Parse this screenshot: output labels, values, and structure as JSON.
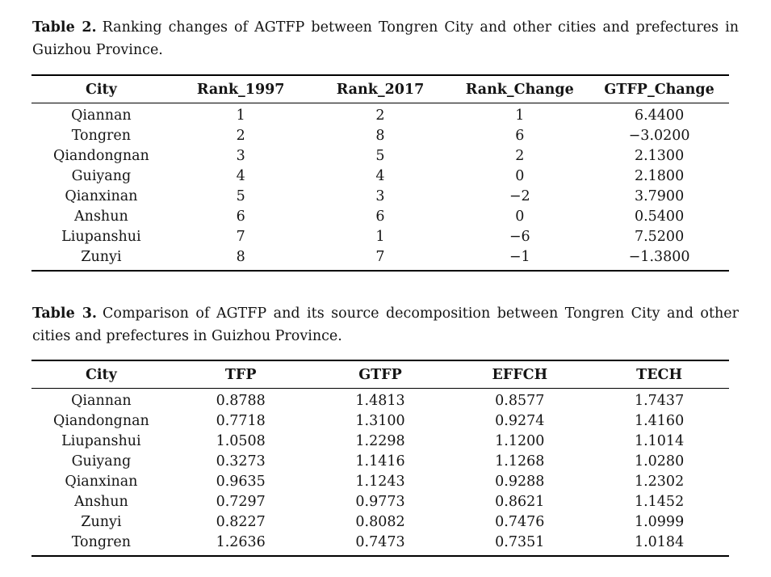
{
  "page": {
    "background_color": "#ffffff",
    "text_color": "#141414",
    "rule_color": "#000000"
  },
  "tables": [
    {
      "caption_label": "Table 2.",
      "caption_text": "Ranking changes of AGTFP between Tongren City and other cities and prefectures in Guizhou Province.",
      "columns": [
        "City",
        "Rank_1997",
        "Rank_2017",
        "Rank_Change",
        "GTFP_Change"
      ],
      "rows": [
        [
          "Qiannan",
          "1",
          "2",
          "1",
          "6.4400"
        ],
        [
          "Tongren",
          "2",
          "8",
          "6",
          "−3.0200"
        ],
        [
          "Qiandongnan",
          "3",
          "5",
          "2",
          "2.1300"
        ],
        [
          "Guiyang",
          "4",
          "4",
          "0",
          "2.1800"
        ],
        [
          "Qianxinan",
          "5",
          "3",
          "−2",
          "3.7900"
        ],
        [
          "Anshun",
          "6",
          "6",
          "0",
          "0.5400"
        ],
        [
          "Liupanshui",
          "7",
          "1",
          "−6",
          "7.5200"
        ],
        [
          "Zunyi",
          "8",
          "7",
          "−1",
          "−1.3800"
        ]
      ]
    },
    {
      "caption_label": "Table 3.",
      "caption_text": "Comparison of AGTFP and its source decomposition between Tongren City and other cities and prefectures in Guizhou Province.",
      "columns": [
        "City",
        "TFP",
        "GTFP",
        "EFFCH",
        "TECH"
      ],
      "rows": [
        [
          "Qiannan",
          "0.8788",
          "1.4813",
          "0.8577",
          "1.7437"
        ],
        [
          "Qiandongnan",
          "0.7718",
          "1.3100",
          "0.9274",
          "1.4160"
        ],
        [
          "Liupanshui",
          "1.0508",
          "1.2298",
          "1.1200",
          "1.1014"
        ],
        [
          "Guiyang",
          "0.3273",
          "1.1416",
          "1.1268",
          "1.0280"
        ],
        [
          "Qianxinan",
          "0.9635",
          "1.1243",
          "0.9288",
          "1.2302"
        ],
        [
          "Anshun",
          "0.7297",
          "0.9773",
          "0.8621",
          "1.1452"
        ],
        [
          "Zunyi",
          "0.8227",
          "0.8082",
          "0.7476",
          "1.0999"
        ],
        [
          "Tongren",
          "1.2636",
          "0.7473",
          "0.7351",
          "1.0184"
        ]
      ]
    }
  ]
}
